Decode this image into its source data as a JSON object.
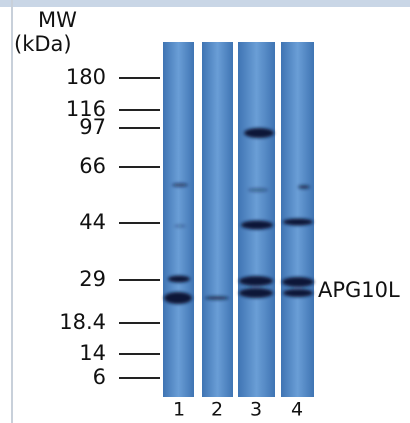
{
  "header": {
    "line1": "MW",
    "line2": "(kDa)"
  },
  "markers": [
    "180",
    "116",
    "97",
    "66",
    "44",
    "29",
    "18.4",
    "14",
    "6"
  ],
  "lanes": [
    "1",
    "2",
    "3",
    "4"
  ],
  "band_label": "APG10L"
}
